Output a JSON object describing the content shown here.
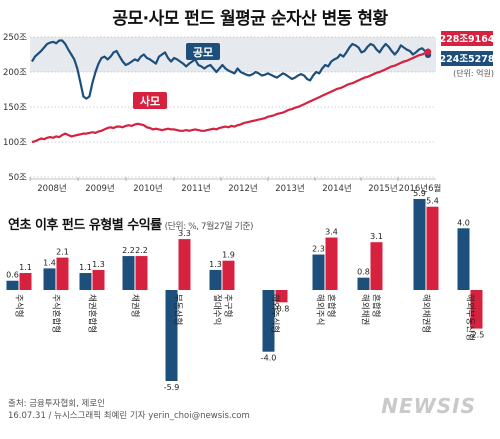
{
  "title": "공모·사모 펀드 월평균 순자산 변동 현황",
  "colors": {
    "public": "#1d4f7c",
    "private": "#d6213f",
    "band": "#e6e9ed"
  },
  "chart_data": [
    {
      "type": "line",
      "title": "공모·사모 펀드 월평균 순자산 변동 현황",
      "unit": "(단위: 억원)",
      "y_ticks": [
        "250조",
        "200조",
        "150조",
        "100조",
        "50조"
      ],
      "y_tick_values": [
        250,
        200,
        150,
        100,
        50
      ],
      "ylim": [
        50,
        250
      ],
      "x_ticks": [
        "2008년",
        "2009년",
        "2010년",
        "2011년",
        "2012년",
        "2013년",
        "2014년",
        "2015년",
        "2016년6월"
      ],
      "series": [
        {
          "name": "공모",
          "end_label": "224조5278",
          "values": [
            215,
            222,
            226,
            230,
            235,
            240,
            242,
            243,
            241,
            245,
            245,
            240,
            232,
            225,
            218,
            205,
            185,
            165,
            162,
            165,
            185,
            200,
            212,
            220,
            222,
            218,
            222,
            228,
            230,
            222,
            215,
            210,
            212,
            215,
            218,
            216,
            222,
            225,
            220,
            218,
            215,
            212,
            222,
            225,
            228,
            220,
            215,
            220,
            218,
            215,
            212,
            208,
            212,
            215,
            218,
            210,
            208,
            205,
            208,
            210,
            205,
            200,
            205,
            210,
            205,
            202,
            200,
            198,
            205,
            200,
            198,
            196,
            195,
            197,
            200,
            198,
            195,
            196,
            198,
            196,
            194,
            192,
            195,
            198,
            196,
            193,
            190,
            192,
            195,
            197,
            195,
            190,
            188,
            195,
            200,
            198,
            205,
            210,
            208,
            215,
            218,
            220,
            225,
            222,
            228,
            235,
            240,
            238,
            235,
            228,
            230,
            236,
            240,
            238,
            232,
            228,
            235,
            240,
            236,
            230,
            225,
            230,
            238,
            235,
            232,
            230,
            225,
            228,
            232,
            234,
            230,
            224.5278
          ]
        },
        {
          "name": "사모",
          "end_label": "228조9164",
          "values": [
            100,
            101,
            103,
            105,
            104,
            106,
            107,
            106,
            108,
            107,
            110,
            112,
            110,
            108,
            109,
            110,
            111,
            112,
            112,
            113,
            114,
            113,
            115,
            116,
            118,
            120,
            121,
            120,
            122,
            122,
            121,
            123,
            124,
            123,
            125,
            126,
            125,
            124,
            121,
            120,
            118,
            119,
            118,
            117,
            118,
            119,
            118,
            118,
            117,
            116,
            116,
            117,
            116,
            117,
            118,
            117,
            116,
            116,
            117,
            118,
            119,
            118,
            120,
            121,
            122,
            121,
            123,
            122,
            124,
            125,
            127,
            128,
            129,
            130,
            131,
            132,
            133,
            134,
            136,
            137,
            138,
            140,
            141,
            142,
            144,
            146,
            147,
            149,
            150,
            152,
            154,
            156,
            158,
            160,
            162,
            164,
            166,
            168,
            170,
            172,
            174,
            176,
            177,
            179,
            181,
            183,
            184,
            186,
            188,
            190,
            192,
            193,
            195,
            197,
            199,
            200,
            202,
            204,
            206,
            208,
            209,
            211,
            213,
            215,
            216,
            218,
            220,
            222,
            224,
            225,
            227,
            228.9164
          ]
        }
      ]
    },
    {
      "type": "bar",
      "title": "연초 이후 펀드 유형별 수익률",
      "unit": "(단위: %, 7월27일 기준)",
      "categories": [
        "주식형",
        "주식혼합형",
        "채권혼합형",
        "채권형",
        "부동산형",
        "절대수익 추구형",
        "해외주식형",
        "해외주식 혼합형",
        "해외채권 혼합형",
        "해외채권형",
        "해외부동산형"
      ],
      "series": [
        {
          "name": "",
          "values": [
            0.6,
            1.4,
            1.1,
            2.2,
            -5.9,
            1.3,
            -4.0,
            2.3,
            0.8,
            5.9,
            4.0
          ]
        },
        {
          "name": "",
          "values": [
            1.1,
            2.1,
            1.3,
            2.2,
            3.3,
            1.9,
            -0.8,
            3.4,
            3.1,
            5.4,
            -2.5
          ]
        }
      ],
      "value_labels": [
        [
          "0.6",
          "1.4",
          "1.1",
          "2.2",
          "-5.9",
          "1.3",
          "-4.0",
          "2.3",
          "0.8",
          "5.9",
          "4.0"
        ],
        [
          "1.1",
          "2.1",
          "1.3",
          "2.2",
          "3.3",
          "1.9",
          "-0.8",
          "3.4",
          "3.1",
          "5.4",
          "-2.5"
        ]
      ]
    }
  ],
  "footer": {
    "source": "출처: 금융투자협회, 제로인",
    "credit": "16.07.31 / 뉴시스그래픽 최예린 기자 yerin_choi@newsis.com",
    "logo": "NEWSIS"
  }
}
